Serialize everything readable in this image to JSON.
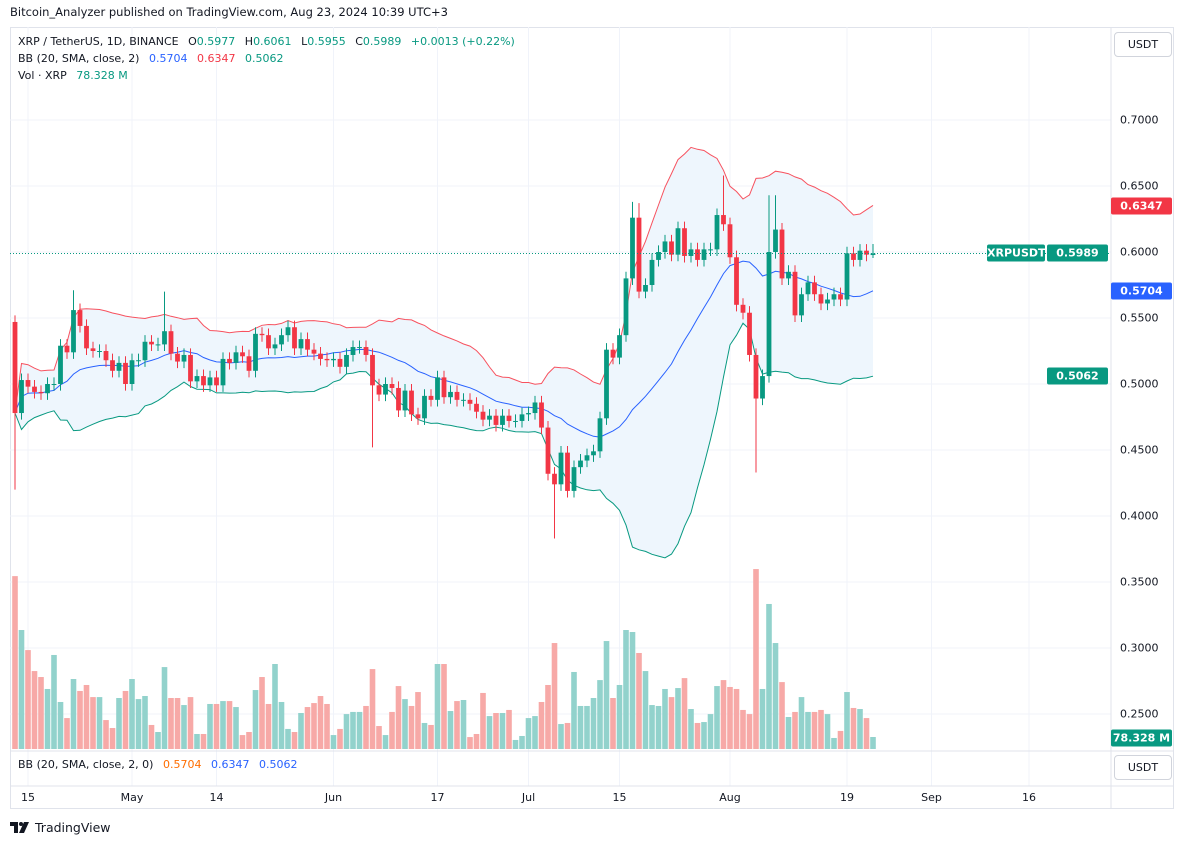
{
  "header": {
    "publisher_line": "Bitcoin_Analyzer published on TradingView.com, Aug 23, 2024 10:39 UTC+3"
  },
  "legend": {
    "symbol": "XRP / TetherUS, 1D, BINANCE",
    "o_label": "O",
    "o": "0.5977",
    "h_label": "H",
    "h": "0.6061",
    "l_label": "L",
    "l": "0.5955",
    "c_label": "C",
    "c": "0.5989",
    "change": "+0.0013 (+0.22%)",
    "bb_label": "BB (20, SMA, close, 2)",
    "bb_basis": "0.5704",
    "bb_upper": "0.6347",
    "bb_lower": "0.5062",
    "vol_label": "Vol · XRP",
    "vol_value": "78.328 M"
  },
  "indicator_pane": {
    "label": "BB (20, SMA, close, 2, 0)",
    "v1": "0.5704",
    "v2": "0.6347",
    "v3": "0.5062"
  },
  "price_axis": {
    "currency_button": "USDT",
    "tick_labels": [
      "0.7000",
      "0.6500",
      "0.6000",
      "0.5500",
      "0.5000",
      "0.4500",
      "0.4000",
      "0.3500",
      "0.3000",
      "0.2500"
    ],
    "tags": {
      "bb_upper": "0.6347",
      "symbol": "XRPUSDT",
      "last_price": "0.5989",
      "bb_basis": "0.5704",
      "bb_lower": "0.5062",
      "volume": "78.328 M"
    }
  },
  "indicator_axis": {
    "currency_button": "USDT"
  },
  "time_axis": {
    "ticks": [
      {
        "label": "15",
        "date": "2024-04-15"
      },
      {
        "label": "May",
        "date": "2024-05-01"
      },
      {
        "label": "14",
        "date": "2024-05-14"
      },
      {
        "label": "Jun",
        "date": "2024-06-01"
      },
      {
        "label": "17",
        "date": "2024-06-17"
      },
      {
        "label": "Jul",
        "date": "2024-07-01"
      },
      {
        "label": "15",
        "date": "2024-07-15"
      },
      {
        "label": "Aug",
        "date": "2024-08-01"
      },
      {
        "label": "19",
        "date": "2024-08-19"
      },
      {
        "label": "Sep",
        "date": "2024-09-01"
      },
      {
        "label": "16",
        "date": "2024-09-16"
      }
    ]
  },
  "footer": {
    "logo_text": "TradingView"
  },
  "colors": {
    "up": "#089981",
    "down": "#f23645",
    "volume_up": "#92d2cc",
    "volume_down": "#f7a9a7",
    "bb_upper": "#f7525f",
    "bb_basis": "#2962ff",
    "bb_lower": "#089981",
    "bb_fill": "#eef6fd"
  },
  "chart_data": {
    "type": "candlestick",
    "symbol": "XRP / TetherUS",
    "interval": "1D",
    "y_range": [
      0.23,
      0.72
    ],
    "grid": true,
    "bollinger": {
      "length": 20,
      "ma": "SMA",
      "source": "close",
      "mult": 2
    },
    "dates": [
      "2024-04-13",
      "2024-04-14",
      "2024-04-15",
      "2024-04-16",
      "2024-04-17",
      "2024-04-18",
      "2024-04-19",
      "2024-04-20",
      "2024-04-21",
      "2024-04-22",
      "2024-04-23",
      "2024-04-24",
      "2024-04-25",
      "2024-04-26",
      "2024-04-27",
      "2024-04-28",
      "2024-04-29",
      "2024-04-30",
      "2024-05-01",
      "2024-05-02",
      "2024-05-03",
      "2024-05-04",
      "2024-05-05",
      "2024-05-06",
      "2024-05-07",
      "2024-05-08",
      "2024-05-09",
      "2024-05-10",
      "2024-05-11",
      "2024-05-12",
      "2024-05-13",
      "2024-05-14",
      "2024-05-15",
      "2024-05-16",
      "2024-05-17",
      "2024-05-18",
      "2024-05-19",
      "2024-05-20",
      "2024-05-21",
      "2024-05-22",
      "2024-05-23",
      "2024-05-24",
      "2024-05-25",
      "2024-05-26",
      "2024-05-27",
      "2024-05-28",
      "2024-05-29",
      "2024-05-30",
      "2024-05-31",
      "2024-06-01",
      "2024-06-02",
      "2024-06-03",
      "2024-06-04",
      "2024-06-05",
      "2024-06-06",
      "2024-06-07",
      "2024-06-08",
      "2024-06-09",
      "2024-06-10",
      "2024-06-11",
      "2024-06-12",
      "2024-06-13",
      "2024-06-14",
      "2024-06-15",
      "2024-06-16",
      "2024-06-17",
      "2024-06-18",
      "2024-06-19",
      "2024-06-20",
      "2024-06-21",
      "2024-06-22",
      "2024-06-23",
      "2024-06-24",
      "2024-06-25",
      "2024-06-26",
      "2024-06-27",
      "2024-06-28",
      "2024-06-29",
      "2024-06-30",
      "2024-07-01",
      "2024-07-02",
      "2024-07-03",
      "2024-07-04",
      "2024-07-05",
      "2024-07-06",
      "2024-07-07",
      "2024-07-08",
      "2024-07-09",
      "2024-07-10",
      "2024-07-11",
      "2024-07-12",
      "2024-07-13",
      "2024-07-14",
      "2024-07-15",
      "2024-07-16",
      "2024-07-17",
      "2024-07-18",
      "2024-07-19",
      "2024-07-20",
      "2024-07-21",
      "2024-07-22",
      "2024-07-23",
      "2024-07-24",
      "2024-07-25",
      "2024-07-26",
      "2024-07-27",
      "2024-07-28",
      "2024-07-29",
      "2024-07-30",
      "2024-07-31",
      "2024-08-01",
      "2024-08-02",
      "2024-08-03",
      "2024-08-04",
      "2024-08-05",
      "2024-08-06",
      "2024-08-07",
      "2024-08-08",
      "2024-08-09",
      "2024-08-10",
      "2024-08-11",
      "2024-08-12",
      "2024-08-13",
      "2024-08-14",
      "2024-08-15",
      "2024-08-16",
      "2024-08-17",
      "2024-08-18",
      "2024-08-19",
      "2024-08-20",
      "2024-08-21",
      "2024-08-22",
      "2024-08-23"
    ],
    "open": [
      0.547,
      0.478,
      0.503,
      0.498,
      0.494,
      0.493,
      0.5,
      0.5,
      0.529,
      0.524,
      0.556,
      0.544,
      0.527,
      0.525,
      0.525,
      0.518,
      0.51,
      0.516,
      0.5,
      0.518,
      0.518,
      0.532,
      0.53,
      0.53,
      0.54,
      0.523,
      0.517,
      0.522,
      0.502,
      0.506,
      0.499,
      0.505,
      0.499,
      0.519,
      0.516,
      0.524,
      0.521,
      0.51,
      0.538,
      0.537,
      0.527,
      0.53,
      0.537,
      0.543,
      0.527,
      0.534,
      0.526,
      0.523,
      0.519,
      0.518,
      0.519,
      0.513,
      0.522,
      0.528,
      0.528,
      0.522,
      0.499,
      0.492,
      0.5,
      0.497,
      0.48,
      0.495,
      0.477,
      0.474,
      0.491,
      0.488,
      0.505,
      0.49,
      0.494,
      0.488,
      0.488,
      0.485,
      0.479,
      0.473,
      0.476,
      0.469,
      0.476,
      0.472,
      0.472,
      0.477,
      0.478,
      0.486,
      0.467,
      0.432,
      0.424,
      0.448,
      0.419,
      0.437,
      0.442,
      0.446,
      0.449,
      0.474,
      0.526,
      0.52,
      0.537,
      0.58,
      0.626,
      0.57,
      0.575,
      0.594,
      0.6,
      0.608,
      0.598,
      0.618,
      0.597,
      0.602,
      0.594,
      0.602,
      0.602,
      0.628,
      0.621,
      0.596,
      0.56,
      0.554,
      0.522,
      0.489,
      0.506,
      0.6,
      0.617,
      0.58,
      0.585,
      0.552,
      0.568,
      0.577,
      0.568,
      0.561,
      0.564,
      0.568,
      0.564,
      0.599,
      0.594,
      0.601,
      0.5977
    ],
    "close": [
      0.478,
      0.503,
      0.498,
      0.494,
      0.493,
      0.5,
      0.5,
      0.529,
      0.524,
      0.556,
      0.544,
      0.527,
      0.525,
      0.525,
      0.518,
      0.51,
      0.516,
      0.5,
      0.518,
      0.518,
      0.532,
      0.53,
      0.53,
      0.54,
      0.523,
      0.517,
      0.522,
      0.502,
      0.506,
      0.499,
      0.505,
      0.499,
      0.519,
      0.516,
      0.524,
      0.521,
      0.51,
      0.538,
      0.537,
      0.527,
      0.53,
      0.537,
      0.543,
      0.527,
      0.534,
      0.526,
      0.523,
      0.519,
      0.518,
      0.519,
      0.513,
      0.522,
      0.528,
      0.528,
      0.522,
      0.499,
      0.492,
      0.5,
      0.497,
      0.48,
      0.495,
      0.477,
      0.474,
      0.491,
      0.488,
      0.505,
      0.49,
      0.494,
      0.488,
      0.488,
      0.485,
      0.479,
      0.473,
      0.476,
      0.469,
      0.476,
      0.472,
      0.472,
      0.477,
      0.478,
      0.486,
      0.467,
      0.432,
      0.424,
      0.448,
      0.419,
      0.437,
      0.442,
      0.446,
      0.449,
      0.474,
      0.526,
      0.52,
      0.537,
      0.58,
      0.626,
      0.57,
      0.575,
      0.594,
      0.6,
      0.608,
      0.598,
      0.618,
      0.597,
      0.602,
      0.594,
      0.602,
      0.602,
      0.628,
      0.621,
      0.596,
      0.56,
      0.554,
      0.522,
      0.489,
      0.506,
      0.6,
      0.617,
      0.58,
      0.585,
      0.552,
      0.568,
      0.577,
      0.568,
      0.561,
      0.564,
      0.568,
      0.564,
      0.599,
      0.594,
      0.601,
      0.598,
      0.5989
    ],
    "wick_extremes": [
      {
        "date": "2024-04-13",
        "low": 0.42
      },
      {
        "date": "2024-04-22",
        "high": 0.571
      },
      {
        "date": "2024-05-06",
        "high": 0.57
      },
      {
        "date": "2024-06-07",
        "low": 0.452
      },
      {
        "date": "2024-07-05",
        "low": 0.383
      },
      {
        "date": "2024-07-17",
        "high": 0.638
      },
      {
        "date": "2024-07-18",
        "high": 0.637
      },
      {
        "date": "2024-07-31",
        "high": 0.658
      },
      {
        "date": "2024-08-05",
        "low": 0.433
      },
      {
        "date": "2024-08-07",
        "high": 0.643
      },
      {
        "date": "2024-08-08",
        "high": 0.643
      },
      {
        "date": "2024-08-23",
        "high": 0.6061,
        "low": 0.5955
      }
    ],
    "volume_unit": "M",
    "volume": [
      1129,
      777,
      646,
      509,
      470,
      392,
      614,
      307,
      202,
      457,
      379,
      418,
      339,
      339,
      189,
      137,
      333,
      379,
      457,
      326,
      346,
      157,
      111,
      535,
      333,
      333,
      287,
      339,
      98,
      98,
      294,
      294,
      313,
      313,
      274,
      91,
      111,
      385,
      470,
      294,
      555,
      307,
      131,
      111,
      235,
      274,
      300,
      346,
      294,
      91,
      131,
      228,
      242,
      242,
      281,
      522,
      150,
      91,
      242,
      411,
      326,
      281,
      372,
      170,
      157,
      555,
      555,
      248,
      313,
      320,
      78,
      98,
      366,
      215,
      235,
      235,
      255,
      59,
      85,
      202,
      215,
      307,
      418,
      692,
      163,
      170,
      503,
      281,
      281,
      333,
      450,
      705,
      333,
      418,
      777,
      764,
      627,
      509,
      287,
      281,
      392,
      339,
      398,
      463,
      261,
      170,
      176,
      228,
      411,
      450,
      405,
      392,
      255,
      228,
      1175,
      392,
      947,
      692,
      437,
      209,
      242,
      339,
      242,
      242,
      255,
      228,
      72,
      118,
      372,
      268,
      261,
      202,
      78.328
    ]
  }
}
